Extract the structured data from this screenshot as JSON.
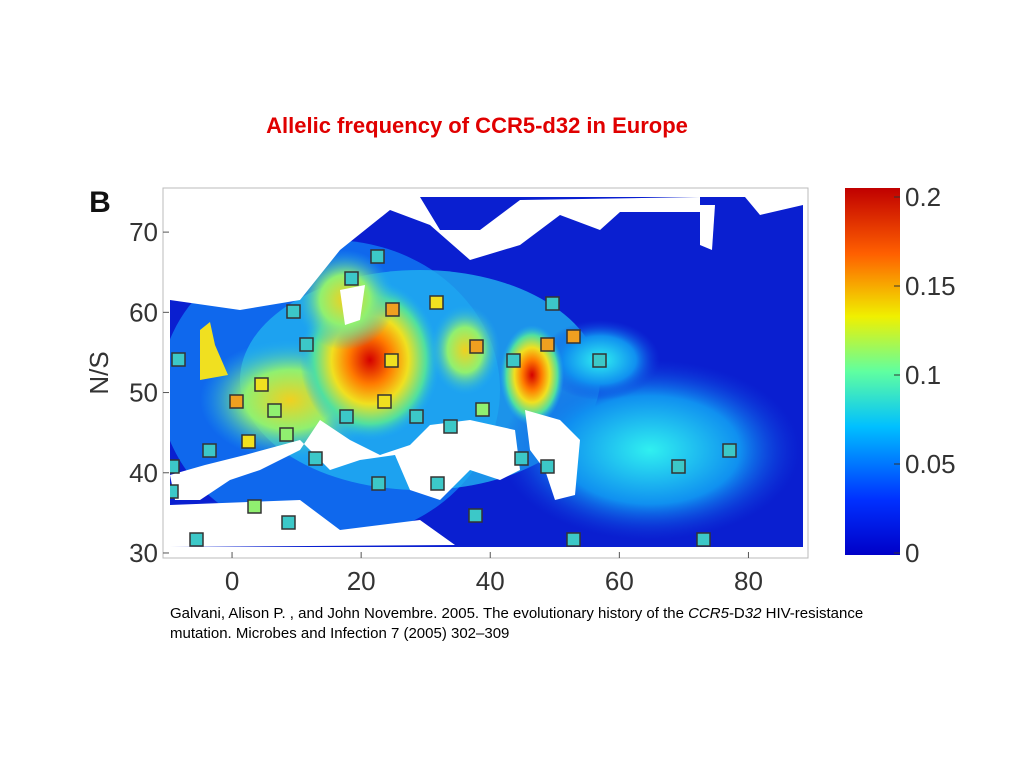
{
  "title": "Allelic frequency of CCR5-d32 in Europe",
  "figure": {
    "panel_label": "B",
    "y_label": "N/S",
    "xlim": [
      -10,
      90
    ],
    "xticks": [
      0,
      20,
      40,
      60,
      80
    ],
    "ylim": [
      29,
      75
    ],
    "yticks": [
      30,
      40,
      50,
      60,
      70
    ],
    "colorbar": {
      "lim": [
        0,
        0.2
      ],
      "ticks": [
        0,
        0.05,
        0.1,
        0.15,
        0.2
      ]
    }
  },
  "citation": {
    "text1": "Galvani, Alison P. , and John Novembre. 2005. The evolutionary history of the ",
    "gene1": "CCR5",
    "dash": "-D",
    "gene2": "32",
    "text2": " HIV-resistance mutation. Microbes and Infection 7 (2005) 302–309"
  }
}
